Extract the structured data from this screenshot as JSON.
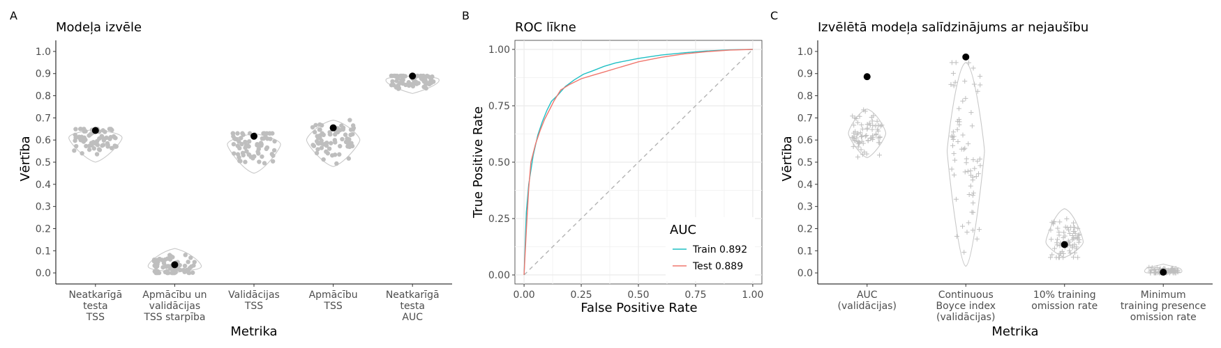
{
  "chart_data": [
    {
      "panel": "A",
      "type": "scatter",
      "title": "Modeļa izvēle",
      "xlabel": "Metrika",
      "ylabel": "Vērtība",
      "ylim": [
        -0.05,
        1.05
      ],
      "yticks": [
        "0.0",
        "0.1",
        "0.2",
        "0.3",
        "0.4",
        "0.5",
        "0.6",
        "0.7",
        "0.8",
        "0.9",
        "1.0"
      ],
      "grid": false,
      "categories": [
        {
          "lines": [
            "Neatkarīgā",
            "testa",
            "TSS"
          ],
          "selected": 0.643,
          "min": 0.5,
          "max": 0.65,
          "center": 0.61
        },
        {
          "lines": [
            "Apmācību un",
            "validācijas",
            "TSS starpība"
          ],
          "selected": 0.037,
          "min": 0.0,
          "max": 0.11,
          "center": 0.03
        },
        {
          "lines": [
            "Validācijas",
            "TSS"
          ],
          "selected": 0.617,
          "min": 0.45,
          "max": 0.63,
          "center": 0.58
        },
        {
          "lines": [
            "Apmācību",
            "TSS"
          ],
          "selected": 0.655,
          "min": 0.48,
          "max": 0.69,
          "center": 0.6
        },
        {
          "lines": [
            "Neatkarīgā",
            "testa",
            "AUC"
          ],
          "selected": 0.889,
          "min": 0.81,
          "max": 0.89,
          "center": 0.87
        }
      ]
    },
    {
      "panel": "B",
      "type": "line",
      "title": "ROC līkne",
      "xlabel": "False Positive Rate",
      "ylabel": "True Positive Rate",
      "xlim": [
        0,
        1
      ],
      "ylim": [
        0,
        1
      ],
      "xticks": [
        "0.00",
        "0.25",
        "0.50",
        "0.75",
        "1.00"
      ],
      "yticks": [
        "0.00",
        "0.25",
        "0.50",
        "0.75",
        "1.00"
      ],
      "grid": true,
      "legend": {
        "title": "AUC",
        "placement": "bottom-right"
      },
      "series": [
        {
          "name": "Train 0.892",
          "color": "#1fbfc4",
          "x": [
            0,
            0.01,
            0.02,
            0.04,
            0.06,
            0.08,
            0.1,
            0.12,
            0.15,
            0.18,
            0.22,
            0.26,
            0.3,
            0.35,
            0.4,
            0.5,
            0.6,
            0.7,
            0.8,
            0.9,
            1.0
          ],
          "y": [
            0,
            0.28,
            0.4,
            0.53,
            0.62,
            0.68,
            0.73,
            0.77,
            0.8,
            0.835,
            0.865,
            0.89,
            0.905,
            0.925,
            0.94,
            0.96,
            0.975,
            0.985,
            0.993,
            0.998,
            1.0
          ]
        },
        {
          "name": "Test 0.889",
          "color": "#f0766d",
          "x": [
            0,
            0.01,
            0.02,
            0.03,
            0.05,
            0.07,
            0.09,
            0.11,
            0.13,
            0.16,
            0.2,
            0.25,
            0.3,
            0.35,
            0.4,
            0.5,
            0.6,
            0.7,
            0.8,
            0.9,
            1.0
          ],
          "y": [
            0,
            0.2,
            0.38,
            0.5,
            0.58,
            0.64,
            0.69,
            0.73,
            0.77,
            0.82,
            0.845,
            0.87,
            0.885,
            0.9,
            0.915,
            0.945,
            0.965,
            0.98,
            0.99,
            0.997,
            1.0
          ]
        }
      ],
      "reference_line": {
        "x": [
          0,
          1
        ],
        "y": [
          0,
          1
        ],
        "style": "dashed",
        "color": "#b3b3b3"
      }
    },
    {
      "panel": "C",
      "type": "scatter",
      "title": "Izvēlētā modeļa salīdzinājums ar nejaušību",
      "xlabel": "Metrika",
      "ylabel": "Vērtība",
      "ylim": [
        -0.05,
        1.05
      ],
      "yticks": [
        "0.0",
        "0.1",
        "0.2",
        "0.3",
        "0.4",
        "0.5",
        "0.6",
        "0.7",
        "0.8",
        "0.9",
        "1.0"
      ],
      "grid": false,
      "categories": [
        {
          "lines": [
            "AUC",
            "(validācijas)"
          ],
          "selected": 0.886,
          "min": 0.52,
          "max": 0.74,
          "center": 0.63
        },
        {
          "lines": [
            "Continuous",
            "Boyce index",
            "(validācijas)"
          ],
          "selected": 0.975,
          "min": 0.03,
          "max": 0.95,
          "center": 0.55
        },
        {
          "lines": [
            "10% training",
            "omission rate"
          ],
          "selected": 0.128,
          "min": 0.07,
          "max": 0.29,
          "center": 0.14
        },
        {
          "lines": [
            "Minimum",
            "training presence",
            "omission rate"
          ],
          "selected": 0.003,
          "min": 0.0,
          "max": 0.04,
          "center": 0.008
        }
      ]
    }
  ],
  "colors": {
    "points": "#bebebe",
    "violin_stroke": "#c8c8c8",
    "selected": "#000000",
    "axis": "#000000",
    "grid": "#ebebeb"
  }
}
